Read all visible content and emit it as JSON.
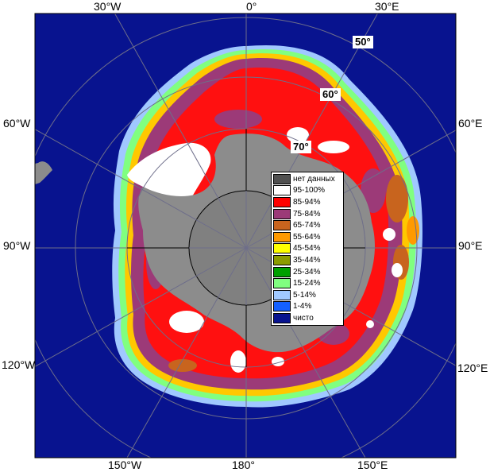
{
  "map": {
    "graticule_labels": {
      "top": [
        "30°W",
        "0°",
        "30°E"
      ],
      "left": [
        "60°W",
        "90°W",
        "120°W"
      ],
      "right": [
        "60°E",
        "90°E",
        "120°E"
      ],
      "bottom": [
        "150°W",
        "180°",
        "150°E"
      ]
    },
    "latitude_labels": [
      "50°",
      "60°",
      "70°"
    ],
    "colors": {
      "ocean": "#08138f",
      "land": "#8c8c8c",
      "ice_95_100": "#ffffff",
      "ice_85_94": "#ff1010",
      "ice_75_84": "#9c3a78",
      "ice_65_74": "#c8641e",
      "ice_55_64": "#ff9a00",
      "ice_45_54": "#ffff00",
      "ice_25_34": "#00a000",
      "ice_15_24": "#80ff80",
      "ice_5_14": "#a0c8ff"
    }
  },
  "legend": {
    "items": [
      {
        "label": "нет данных",
        "color": "#505050"
      },
      {
        "label": "95-100%",
        "color": "#ffffff"
      },
      {
        "label": "85-94%",
        "color": "#ff0000"
      },
      {
        "label": "75-84%",
        "color": "#9c3a78"
      },
      {
        "label": "65-74%",
        "color": "#c8641e"
      },
      {
        "label": "55-64%",
        "color": "#ff9a00"
      },
      {
        "label": "45-54%",
        "color": "#ffff00"
      },
      {
        "label": "35-44%",
        "color": "#8c9c00"
      },
      {
        "label": "25-34%",
        "color": "#00a000"
      },
      {
        "label": "15-24%",
        "color": "#80ff80"
      },
      {
        "label": "5-14%",
        "color": "#a0c8ff"
      },
      {
        "label": "1-4%",
        "color": "#1460ff"
      },
      {
        "label": "чисто",
        "color": "#08138f"
      }
    ]
  }
}
